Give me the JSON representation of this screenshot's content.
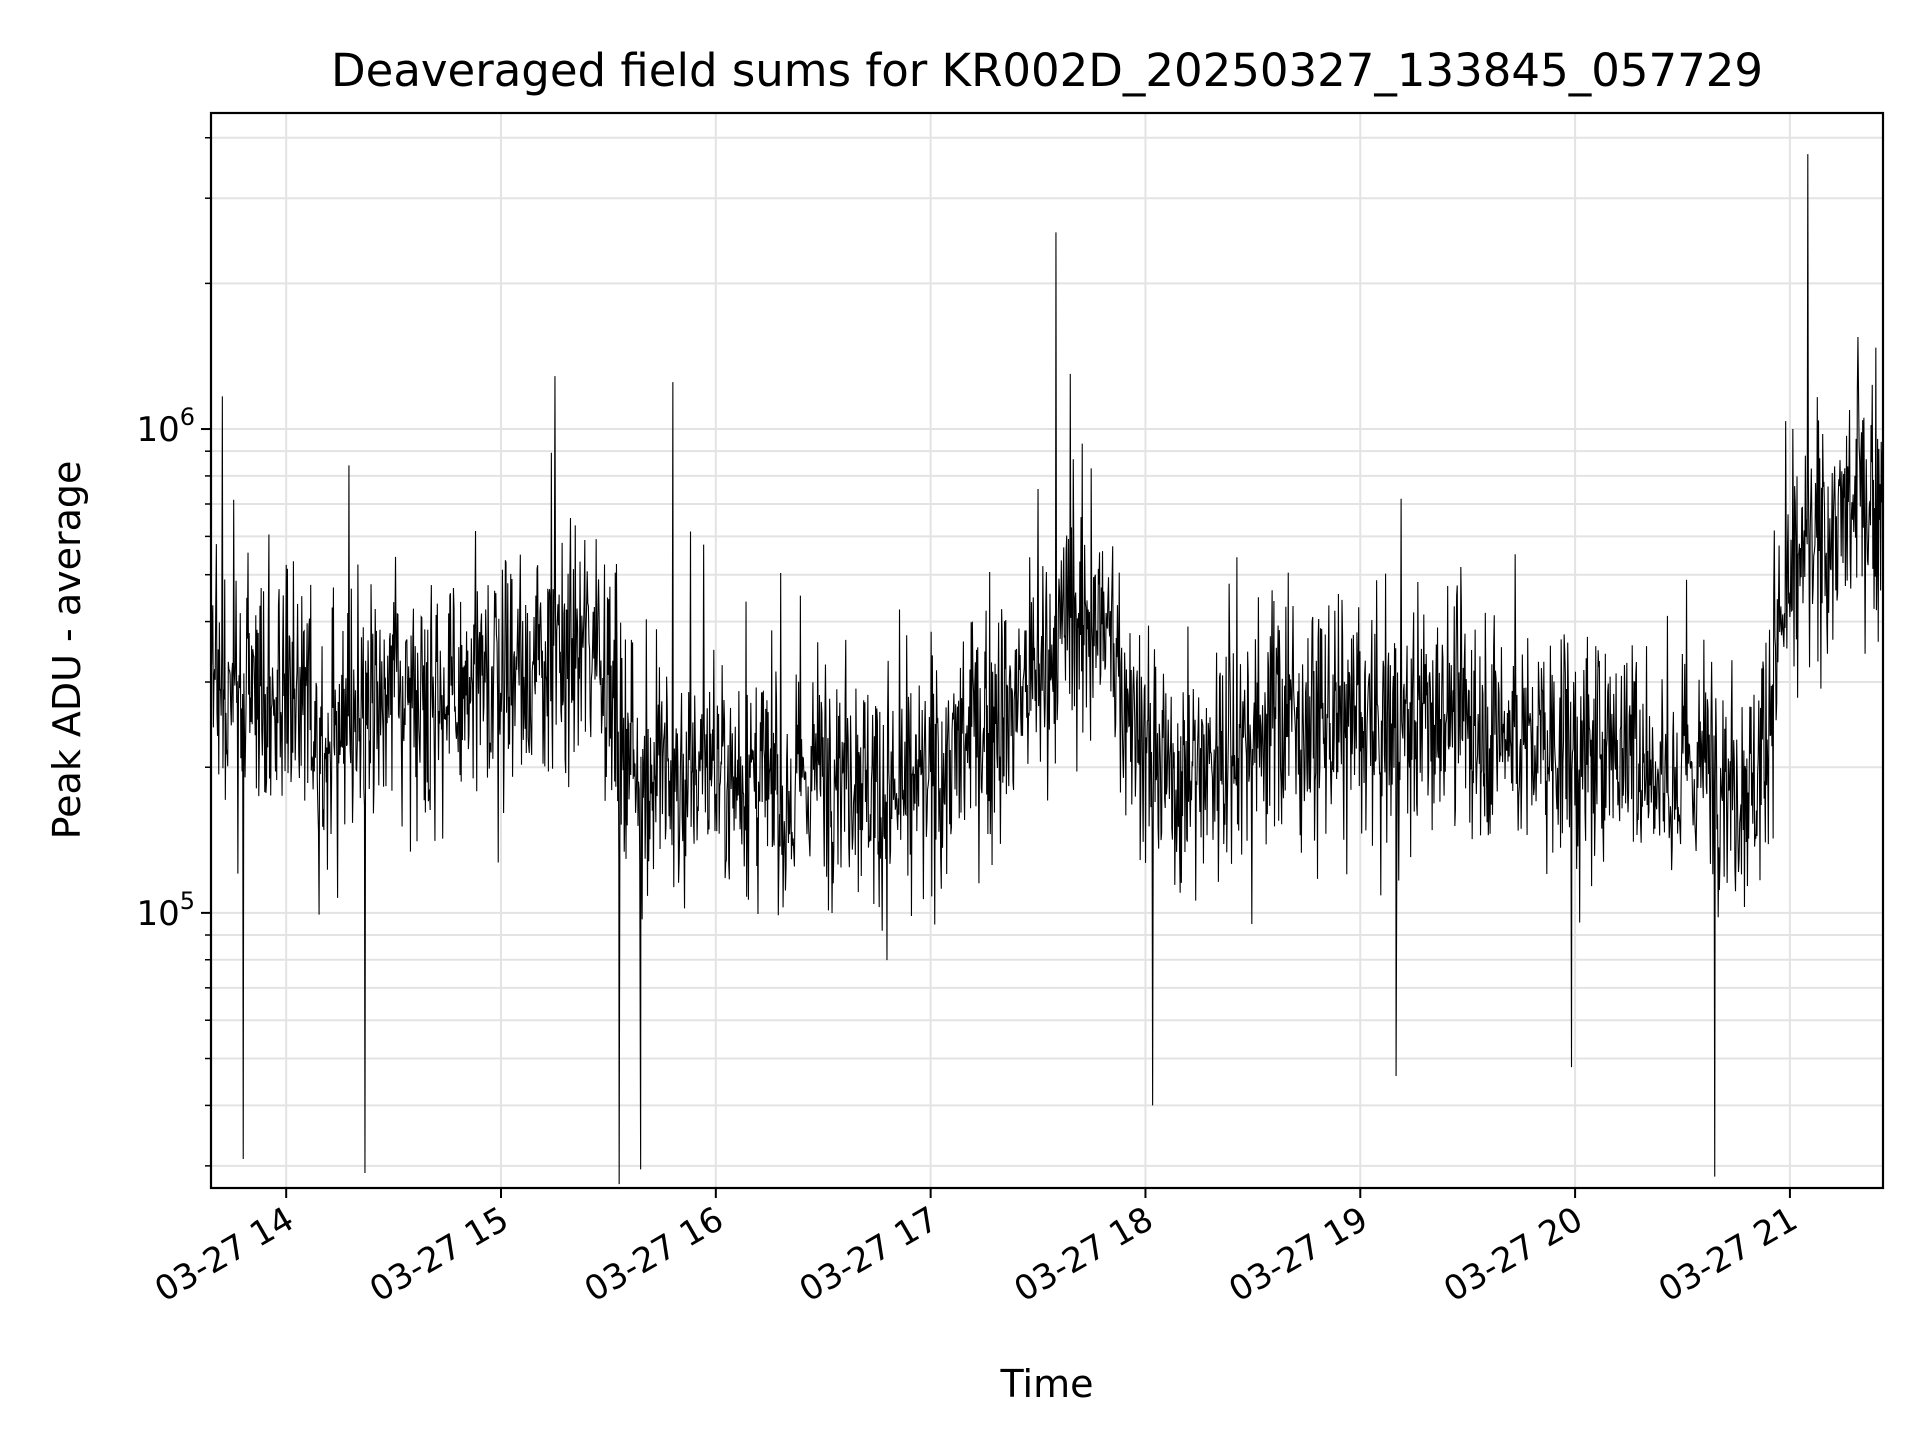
{
  "chart_data": {
    "type": "line",
    "title": "Deaveraged field sums for KR002D_20250327_133845_057729",
    "xlabel": "Time",
    "ylabel": "Peak ADU - average",
    "y_scale": "log",
    "grid": true,
    "x_range": [
      "2025-03-27 13:39",
      "2025-03-27 21:26"
    ],
    "ylim": [
      27000,
      4500000
    ],
    "y_ticks": [
      {
        "value": 100000,
        "base": "10",
        "exp": "5"
      },
      {
        "value": 1000000,
        "base": "10",
        "exp": "6"
      }
    ],
    "x_ticks": [
      {
        "value": "2025-03-27 14:00",
        "label": "03-27 14"
      },
      {
        "value": "2025-03-27 15:00",
        "label": "03-27 15"
      },
      {
        "value": "2025-03-27 16:00",
        "label": "03-27 16"
      },
      {
        "value": "2025-03-27 17:00",
        "label": "03-27 17"
      },
      {
        "value": "2025-03-27 18:00",
        "label": "03-27 18"
      },
      {
        "value": "2025-03-27 19:00",
        "label": "03-27 19"
      },
      {
        "value": "2025-03-27 20:00",
        "label": "03-27 20"
      },
      {
        "value": "2025-03-27 21:00",
        "label": "03-27 21"
      }
    ],
    "series": [
      {
        "color": "#000000",
        "x": [
          "2025-03-27 13:39",
          "2025-03-27 13:45",
          "2025-03-27 13:51",
          "2025-03-27 13:57",
          "2025-03-27 14:03",
          "2025-03-27 14:09",
          "2025-03-27 14:15",
          "2025-03-27 14:21",
          "2025-03-27 14:27",
          "2025-03-27 14:33",
          "2025-03-27 14:39",
          "2025-03-27 14:45",
          "2025-03-27 14:51",
          "2025-03-27 14:57",
          "2025-03-27 15:03",
          "2025-03-27 15:09",
          "2025-03-27 15:15",
          "2025-03-27 15:21",
          "2025-03-27 15:27",
          "2025-03-27 15:33",
          "2025-03-27 15:39",
          "2025-03-27 15:45",
          "2025-03-27 15:51",
          "2025-03-27 15:57",
          "2025-03-27 16:03",
          "2025-03-27 16:09",
          "2025-03-27 16:15",
          "2025-03-27 16:21",
          "2025-03-27 16:27",
          "2025-03-27 16:33",
          "2025-03-27 16:39",
          "2025-03-27 16:45",
          "2025-03-27 16:51",
          "2025-03-27 16:57",
          "2025-03-27 17:03",
          "2025-03-27 17:09",
          "2025-03-27 17:15",
          "2025-03-27 17:21",
          "2025-03-27 17:27",
          "2025-03-27 17:33",
          "2025-03-27 17:39",
          "2025-03-27 17:45",
          "2025-03-27 17:51",
          "2025-03-27 17:57",
          "2025-03-27 18:03",
          "2025-03-27 18:09",
          "2025-03-27 18:15",
          "2025-03-27 18:21",
          "2025-03-27 18:27",
          "2025-03-27 18:33",
          "2025-03-27 18:39",
          "2025-03-27 18:45",
          "2025-03-27 18:51",
          "2025-03-27 18:57",
          "2025-03-27 19:03",
          "2025-03-27 19:09",
          "2025-03-27 19:15",
          "2025-03-27 19:21",
          "2025-03-27 19:27",
          "2025-03-27 19:33",
          "2025-03-27 19:39",
          "2025-03-27 19:45",
          "2025-03-27 19:51",
          "2025-03-27 19:57",
          "2025-03-27 20:03",
          "2025-03-27 20:09",
          "2025-03-27 20:15",
          "2025-03-27 20:21",
          "2025-03-27 20:27",
          "2025-03-27 20:33",
          "2025-03-27 20:39",
          "2025-03-27 20:45",
          "2025-03-27 20:51",
          "2025-03-27 20:57",
          "2025-03-27 21:03",
          "2025-03-27 21:09",
          "2025-03-27 21:15",
          "2025-03-27 21:21",
          "2025-03-27 21:26"
        ],
        "y": [
          300000,
          290000,
          270000,
          260000,
          300000,
          250000,
          240000,
          260000,
          280000,
          300000,
          290000,
          270000,
          280000,
          300000,
          310000,
          320000,
          330000,
          350000,
          400000,
          230000,
          200000,
          190000,
          180000,
          210000,
          200000,
          190000,
          180000,
          170000,
          200000,
          210000,
          200000,
          180000,
          170000,
          180000,
          200000,
          220000,
          240000,
          260000,
          300000,
          330000,
          380000,
          420000,
          350000,
          250000,
          200000,
          190000,
          200000,
          210000,
          230000,
          250000,
          260000,
          240000,
          250000,
          240000,
          230000,
          240000,
          250000,
          260000,
          270000,
          250000,
          240000,
          230000,
          220000,
          230000,
          210000,
          220000,
          230000,
          200000,
          190000,
          200000,
          210000,
          180000,
          190000,
          380000,
          520000,
          600000,
          650000,
          700000,
          720000
        ]
      }
    ],
    "annotations": [
      {
        "x": "2025-03-27 13:48",
        "y": 31000
      },
      {
        "x": "2025-03-27 14:22",
        "y": 29000
      },
      {
        "x": "2025-03-27 15:33",
        "y": 27500
      },
      {
        "x": "2025-03-27 15:39",
        "y": 29500
      },
      {
        "x": "2025-03-27 15:48",
        "y": 1250000
      },
      {
        "x": "2025-03-27 17:35",
        "y": 2550000
      },
      {
        "x": "2025-03-27 17:39",
        "y": 1300000
      },
      {
        "x": "2025-03-27 18:02",
        "y": 40000
      },
      {
        "x": "2025-03-27 19:10",
        "y": 46000
      },
      {
        "x": "2025-03-27 19:59",
        "y": 48000
      },
      {
        "x": "2025-03-27 20:39",
        "y": 28500
      },
      {
        "x": "2025-03-27 21:05",
        "y": 3700000
      },
      {
        "x": "2025-03-27 21:19",
        "y": 1550000
      }
    ]
  }
}
